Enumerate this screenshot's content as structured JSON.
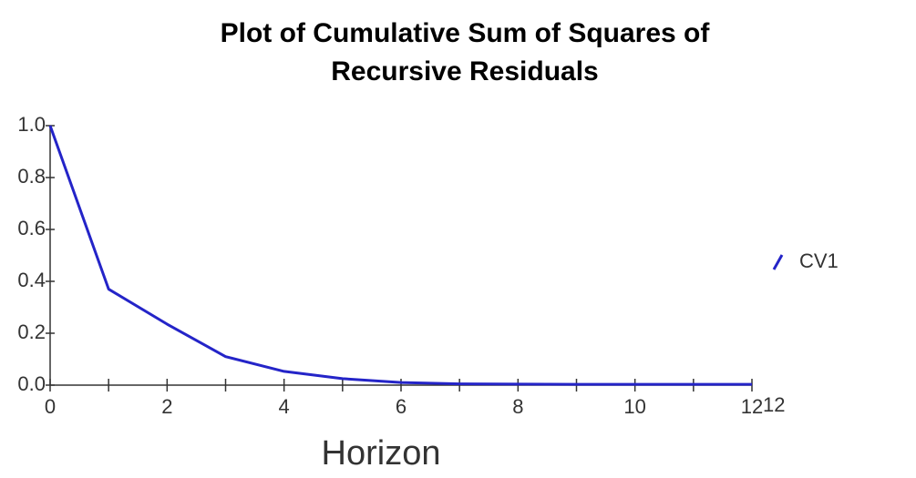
{
  "chart_data": {
    "type": "line",
    "title": [
      "Plot of Cumulative Sum of Squares of",
      "Recursive Residuals"
    ],
    "xlabel": "Horizon",
    "x": [
      0,
      1,
      2,
      3,
      4,
      5,
      6,
      7,
      8,
      9,
      10,
      11,
      12
    ],
    "series": [
      {
        "name": "CV1",
        "color": "#2424c8",
        "values": [
          1.0,
          0.37,
          0.235,
          0.11,
          0.053,
          0.025,
          0.01,
          0.005,
          0.004,
          0.003,
          0.003,
          0.003,
          0.003
        ]
      }
    ],
    "xlim": [
      0,
      12
    ],
    "ylim": [
      0,
      1.0
    ],
    "xticks": [
      0,
      2,
      4,
      6,
      8,
      10,
      12
    ],
    "xminorticks": [
      1,
      3,
      5,
      7,
      9,
      11
    ],
    "yticks": [
      {
        "value": 0,
        "label": "0.0"
      },
      0.2,
      0.4,
      0.6,
      0.8,
      {
        "value": 1,
        "label": "1.0"
      }
    ],
    "x_end_label": "12",
    "legend": "right",
    "grid": false
  }
}
